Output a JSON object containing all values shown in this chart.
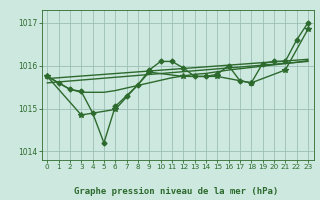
{
  "xlabel": "Graphe pression niveau de la mer (hPa)",
  "background_color": "#cce8df",
  "grid_color": "#9dbfb5",
  "line_color": "#2d6a2d",
  "xlim": [
    -0.5,
    23.5
  ],
  "ylim": [
    1013.8,
    1017.3
  ],
  "yticks": [
    1014,
    1015,
    1016,
    1017
  ],
  "xticks": [
    0,
    1,
    2,
    3,
    4,
    5,
    6,
    7,
    8,
    9,
    10,
    11,
    12,
    13,
    14,
    15,
    16,
    17,
    18,
    19,
    20,
    21,
    22,
    23
  ],
  "series": [
    {
      "x": [
        0,
        1,
        2,
        3,
        4,
        5,
        6,
        7,
        8,
        9,
        10,
        11,
        12,
        13,
        14,
        15,
        16,
        17,
        18,
        19,
        20,
        21,
        22,
        23
      ],
      "y": [
        1015.75,
        1015.6,
        1015.45,
        1015.4,
        1014.9,
        1014.2,
        1015.05,
        1015.3,
        1015.55,
        1015.9,
        1016.1,
        1016.1,
        1015.95,
        1015.75,
        1015.75,
        1015.8,
        1016.0,
        1015.65,
        1015.6,
        1016.05,
        1016.1,
        1016.1,
        1016.6,
        1017.0
      ],
      "marker": "D",
      "markersize": 2.5,
      "linewidth": 1.0
    },
    {
      "x": [
        0,
        23
      ],
      "y": [
        1015.6,
        1016.1
      ],
      "marker": null,
      "markersize": 0,
      "linewidth": 1.0
    },
    {
      "x": [
        0,
        23
      ],
      "y": [
        1015.7,
        1016.15
      ],
      "marker": null,
      "markersize": 0,
      "linewidth": 1.0
    },
    {
      "x": [
        0,
        1,
        2,
        3,
        4,
        5,
        6,
        7,
        8,
        9,
        10,
        11,
        12,
        13,
        14,
        15,
        16,
        17,
        18,
        19,
        20,
        21,
        22,
        23
      ],
      "y": [
        1015.75,
        1015.6,
        1015.45,
        1015.38,
        1015.38,
        1015.38,
        1015.42,
        1015.48,
        1015.54,
        1015.6,
        1015.66,
        1015.72,
        1015.76,
        1015.8,
        1015.82,
        1015.86,
        1015.9,
        1015.93,
        1015.96,
        1015.99,
        1016.02,
        1016.05,
        1016.08,
        1016.12
      ],
      "marker": null,
      "markersize": 0,
      "linewidth": 1.0
    },
    {
      "x": [
        0,
        3,
        6,
        9,
        12,
        15,
        18,
        21,
        23
      ],
      "y": [
        1015.75,
        1014.85,
        1014.98,
        1015.85,
        1015.75,
        1015.75,
        1015.6,
        1015.9,
        1016.85
      ],
      "marker": "*",
      "markersize": 4,
      "linewidth": 1.0
    }
  ]
}
